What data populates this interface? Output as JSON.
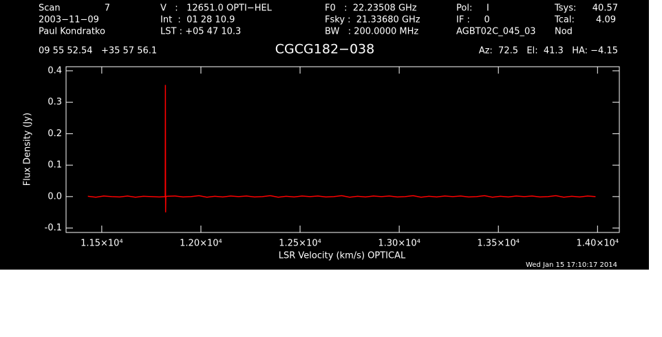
{
  "chart_data": {
    "type": "line",
    "title": "CGCG182−038",
    "header": {
      "scan_label": "Scan",
      "scan": "7",
      "date": "2003−11−09",
      "observer": "Paul Kondratko",
      "v": "V   :   12651.0 OPTI−HEL",
      "int": "Int  :  01 28 10.9",
      "lst": "LST : +05 47 10.3",
      "f0": "F0   :  22.23508 GHz",
      "fsky": "Fsky :  21.33680 GHz",
      "bw": "BW   : 200.0000 MHz",
      "pol": "Pol:     I",
      "if": "IF :     0",
      "project": "AGBT02C_045_03",
      "tsys_label": "Tsys:",
      "tsys": "40.57",
      "tcal_label": "Tcal:",
      "tcal": "4.09",
      "mode": "Nod",
      "coords": "09 55 52.54   +35 57 56.1",
      "azel": "Az:  72.5   El:  41.3   HA: −4.15"
    },
    "xlabel": "LSR Velocity (km/s) OPTICAL",
    "ylabel": "Flux Density (Jy)",
    "footer": "Wed Jan 15 17:10:17 2014",
    "color": "#ff0000",
    "x": [
      11430,
      11470,
      11510,
      11550,
      11590,
      11630,
      11670,
      11710,
      11750,
      11790,
      11820,
      11821,
      11822,
      11823,
      11830,
      11870,
      11910,
      11950,
      11990,
      12030,
      12070,
      12110,
      12150,
      12190,
      12230,
      12270,
      12310,
      12350,
      12390,
      12430,
      12470,
      12510,
      12550,
      12590,
      12630,
      12670,
      12710,
      12750,
      12790,
      12830,
      12870,
      12910,
      12950,
      12990,
      13030,
      13070,
      13110,
      13150,
      13190,
      13230,
      13270,
      13310,
      13350,
      13390,
      13430,
      13470,
      13510,
      13550,
      13590,
      13630,
      13670,
      13710,
      13750,
      13790,
      13830,
      13870,
      13910,
      13950,
      13990
    ],
    "values": [
      0.001,
      -0.002,
      0.002,
      0.0,
      -0.001,
      0.002,
      -0.002,
      0.001,
      0.0,
      -0.001,
      0.0,
      0.355,
      -0.05,
      0.0,
      0.001,
      0.002,
      -0.001,
      0.0,
      0.003,
      -0.002,
      0.001,
      -0.001,
      0.002,
      0.0,
      0.002,
      -0.001,
      0.0,
      0.003,
      -0.002,
      0.001,
      -0.001,
      0.002,
      0.0,
      0.002,
      -0.001,
      0.0,
      0.003,
      -0.002,
      0.001,
      -0.001,
      0.002,
      0.0,
      0.002,
      -0.001,
      0.0,
      0.003,
      -0.002,
      0.001,
      -0.001,
      0.002,
      0.0,
      0.002,
      -0.001,
      0.0,
      0.003,
      -0.002,
      0.001,
      -0.001,
      0.002,
      0.0,
      0.002,
      -0.001,
      0.0,
      0.003,
      -0.002,
      0.001,
      -0.001,
      0.002,
      0.0
    ],
    "xlim": [
      11320,
      14110
    ],
    "ylim": [
      -0.114,
      0.413
    ],
    "xticks": [
      {
        "value": 11500,
        "label": "1.15×10⁴"
      },
      {
        "value": 12000,
        "label": "1.20×10⁴"
      },
      {
        "value": 12500,
        "label": "1.25×10⁴"
      },
      {
        "value": 13000,
        "label": "1.30×10⁴"
      },
      {
        "value": 13500,
        "label": "1.35×10⁴"
      },
      {
        "value": 14000,
        "label": "1.40×10⁴"
      }
    ],
    "yticks": [
      -0.1,
      {
        "value": 0,
        "label": "0.0"
      },
      0.1,
      0.2,
      0.3,
      0.4
    ]
  }
}
